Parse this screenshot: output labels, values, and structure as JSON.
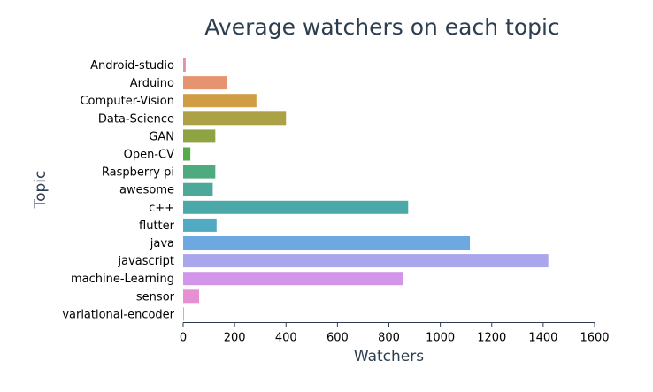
{
  "chart_data": {
    "type": "bar",
    "orientation": "horizontal",
    "title": "Average watchers on each topic",
    "xlabel": "Watchers",
    "ylabel": "Topic",
    "xlim": [
      0,
      1600
    ],
    "xticks": [
      0,
      200,
      400,
      600,
      800,
      1000,
      1200,
      1400,
      1600
    ],
    "grid": false,
    "categories": [
      "Android-studio",
      "Arduino",
      "Computer-Vision",
      "Data-Science",
      "GAN",
      "Open-CV",
      "Raspberry pi",
      "awesome",
      "c++",
      "flutter",
      "java",
      "javascript",
      "machine-Learning",
      "sensor",
      "variational-encoder"
    ],
    "values": [
      10,
      170,
      285,
      400,
      125,
      28,
      125,
      115,
      875,
      130,
      1115,
      1420,
      855,
      62,
      3
    ],
    "colors": [
      "#e88fa8",
      "#e6936f",
      "#d09d45",
      "#aca144",
      "#8ea443",
      "#55ab47",
      "#4dab7f",
      "#4ca99a",
      "#4ca9a9",
      "#4faac2",
      "#6ca9e0",
      "#a9a6ec",
      "#d195e9",
      "#e68fd3",
      "#e88fb9"
    ]
  }
}
